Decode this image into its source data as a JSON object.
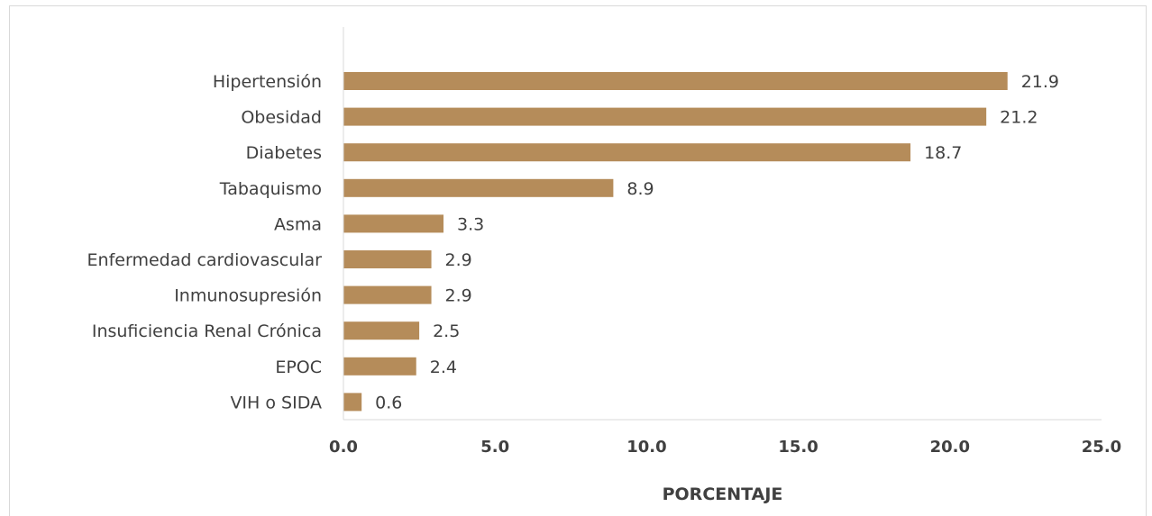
{
  "chart_data": {
    "type": "bar",
    "orientation": "horizontal",
    "title": "",
    "xlabel": "PORCENTAJE",
    "ylabel": "",
    "categories": [
      "Hipertensión",
      "Obesidad",
      "Diabetes",
      "Tabaquismo",
      "Asma",
      "Enfermedad cardiovascular",
      "Inmunosupresión",
      "Insuficiencia Renal Crónica",
      "EPOC",
      "VIH o SIDA"
    ],
    "values": [
      21.9,
      21.2,
      18.7,
      8.9,
      3.3,
      2.9,
      2.9,
      2.5,
      2.4,
      0.6
    ],
    "value_labels": [
      "21.9",
      "21.2",
      "18.7",
      "8.9",
      "3.3",
      "2.9",
      "2.9",
      "2.5",
      "2.4",
      "0.6"
    ],
    "xlim": [
      0,
      25
    ],
    "x_ticks": [
      0,
      5,
      10,
      15,
      20,
      25
    ],
    "x_tick_labels": [
      "0.0",
      "5.0",
      "10.0",
      "15.0",
      "20.0",
      "25.0"
    ],
    "grid": false,
    "legend": "none",
    "bar_color": "#b58c5a",
    "axis_color": "#d9d9d9",
    "text_color": "#404040"
  }
}
